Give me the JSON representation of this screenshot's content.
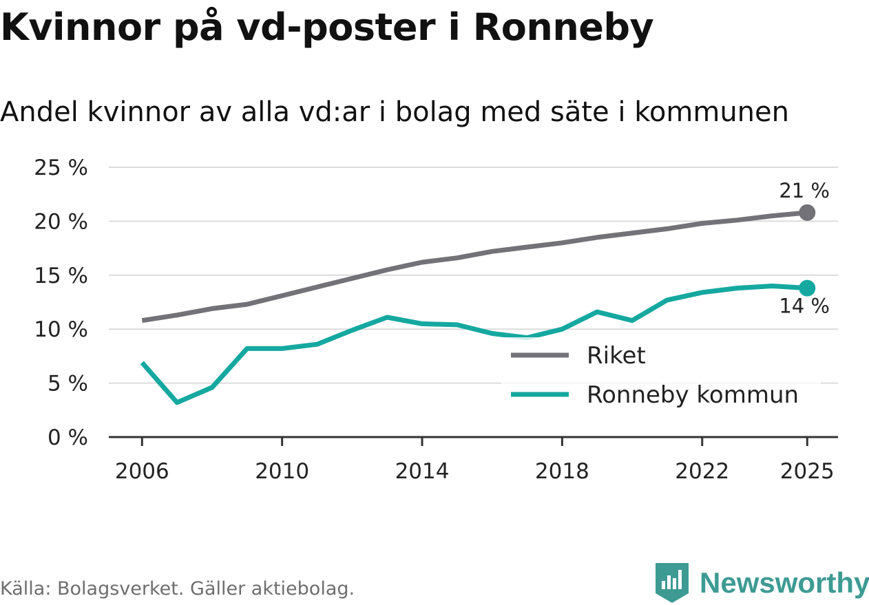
{
  "header": {
    "title": "Kvinnor på vd-poster i Ronneby",
    "subtitle": "Andel kvinnor av alla vd:ar i bolag med säte i kommunen"
  },
  "footer": {
    "source": "Källa: Bolagsverket. Gäller aktiebolag.",
    "brand": "Newsworthy"
  },
  "colors": {
    "riket": "#737278",
    "ronneby": "#15a8a0",
    "grid": "#dcdcdc",
    "axis": "#333333",
    "brand": "#3d9b93"
  },
  "chart_data": {
    "type": "line",
    "x": [
      2006,
      2007,
      2008,
      2009,
      2010,
      2011,
      2012,
      2013,
      2014,
      2015,
      2016,
      2017,
      2018,
      2019,
      2020,
      2021,
      2022,
      2023,
      2024,
      2025
    ],
    "series": [
      {
        "name": "Riket",
        "values": [
          10.8,
          11.3,
          11.9,
          12.3,
          13.1,
          13.9,
          14.7,
          15.5,
          16.2,
          16.6,
          17.2,
          17.6,
          18.0,
          18.5,
          18.9,
          19.3,
          19.8,
          20.1,
          20.5,
          20.8
        ],
        "end_label": "21 %"
      },
      {
        "name": "Ronneby kommun",
        "values": [
          6.9,
          3.2,
          4.6,
          8.2,
          8.2,
          8.6,
          9.9,
          11.1,
          10.5,
          10.4,
          9.6,
          9.2,
          10.0,
          11.6,
          10.8,
          12.7,
          13.4,
          13.8,
          14.0,
          13.8
        ],
        "end_label": "14 %"
      }
    ],
    "title": "Kvinnor på vd-poster i Ronneby",
    "subtitle": "Andel kvinnor av alla vd:ar i bolag med säte i kommunen",
    "xlabel": "",
    "ylabel": "",
    "ylim": [
      0,
      25
    ],
    "yticks": [
      0,
      5,
      10,
      15,
      20,
      25
    ],
    "ytick_labels": [
      "0 %",
      "5 %",
      "10 %",
      "15 %",
      "20 %",
      "25 %"
    ],
    "xticks": [
      2006,
      2010,
      2014,
      2018,
      2022,
      2025
    ],
    "xtick_labels": [
      "2006",
      "2010",
      "2014",
      "2018",
      "2022",
      "2025"
    ],
    "grid": true,
    "legend": "bottom-right"
  }
}
